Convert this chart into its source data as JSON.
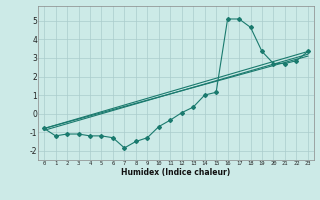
{
  "xlabel": "Humidex (Indice chaleur)",
  "background_color": "#cceae7",
  "grid_color": "#aacccc",
  "line_color": "#1a7a6e",
  "xlim": [
    -0.5,
    23.5
  ],
  "ylim": [
    -2.5,
    5.8
  ],
  "xticks": [
    0,
    1,
    2,
    3,
    4,
    5,
    6,
    7,
    8,
    9,
    10,
    11,
    12,
    13,
    14,
    15,
    16,
    17,
    18,
    19,
    20,
    21,
    22,
    23
  ],
  "yticks": [
    -2,
    -1,
    0,
    1,
    2,
    3,
    4,
    5
  ],
  "curve_x": [
    0,
    1,
    2,
    3,
    4,
    5,
    6,
    7,
    8,
    9,
    10,
    11,
    12,
    13,
    14,
    15,
    16,
    17,
    18,
    19,
    20,
    21,
    22,
    23
  ],
  "curve_y": [
    -0.8,
    -1.2,
    -1.1,
    -1.1,
    -1.2,
    -1.2,
    -1.3,
    -1.85,
    -1.5,
    -1.3,
    -0.7,
    -0.35,
    0.05,
    0.35,
    1.0,
    1.15,
    5.1,
    5.1,
    4.65,
    3.35,
    2.7,
    2.7,
    2.85,
    3.35
  ],
  "line1_x": [
    0,
    23
  ],
  "line1_y": [
    -0.8,
    3.35
  ],
  "line2_x": [
    0,
    23
  ],
  "line2_y": [
    -0.8,
    3.1
  ],
  "line3_x": [
    0,
    23
  ],
  "line3_y": [
    -0.9,
    3.2
  ]
}
